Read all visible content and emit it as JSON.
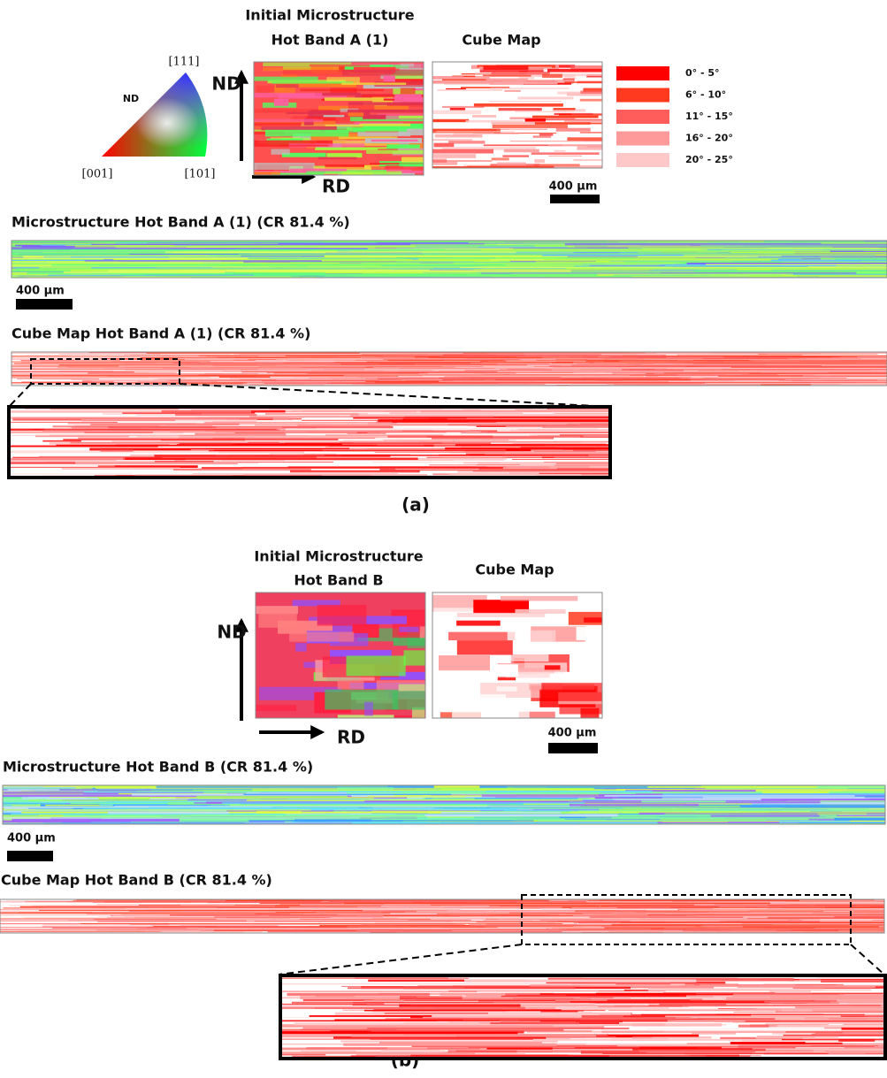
{
  "panel_a": {
    "ipf": {
      "top": "[111]",
      "center": "ND",
      "left": "[001]",
      "right": "[101]"
    },
    "initial_title": [
      "Initial Microstructure",
      "Hot Band A (1)"
    ],
    "cube_title": "Cube Map",
    "axis_nd": "ND",
    "axis_rd": "RD",
    "legend": [
      {
        "label": "0° - 5°",
        "color": "#ff0000"
      },
      {
        "label": "6° - 10°",
        "color": "#ff3a1e"
      },
      {
        "label": "11° - 15°",
        "color": "#ff5c5c"
      },
      {
        "label": "16° - 20°",
        "color": "#ff9a9a"
      },
      {
        "label": "20° - 25°",
        "color": "#ffc8c8"
      }
    ],
    "scale_top": "400 µm",
    "strip_title": "Microstructure Hot Band A (1) (CR 81.4 %)",
    "scale_strip": "400 µm",
    "cube_strip_title": "Cube Map Hot Band A (1) (CR 81.4 %)",
    "caption": "(a)"
  },
  "panel_b": {
    "initial_title": [
      "Initial Microstructure",
      "Hot Band B"
    ],
    "cube_title": "Cube Map",
    "axis_nd": "ND",
    "axis_rd": "RD",
    "scale_top": "400 µm",
    "strip_title": "Microstructure Hot Band B (CR 81.4 %)",
    "scale_strip": "400 µm",
    "cube_strip_title": "Cube Map Hot Band B (CR 81.4 %)",
    "caption": "(b)"
  }
}
